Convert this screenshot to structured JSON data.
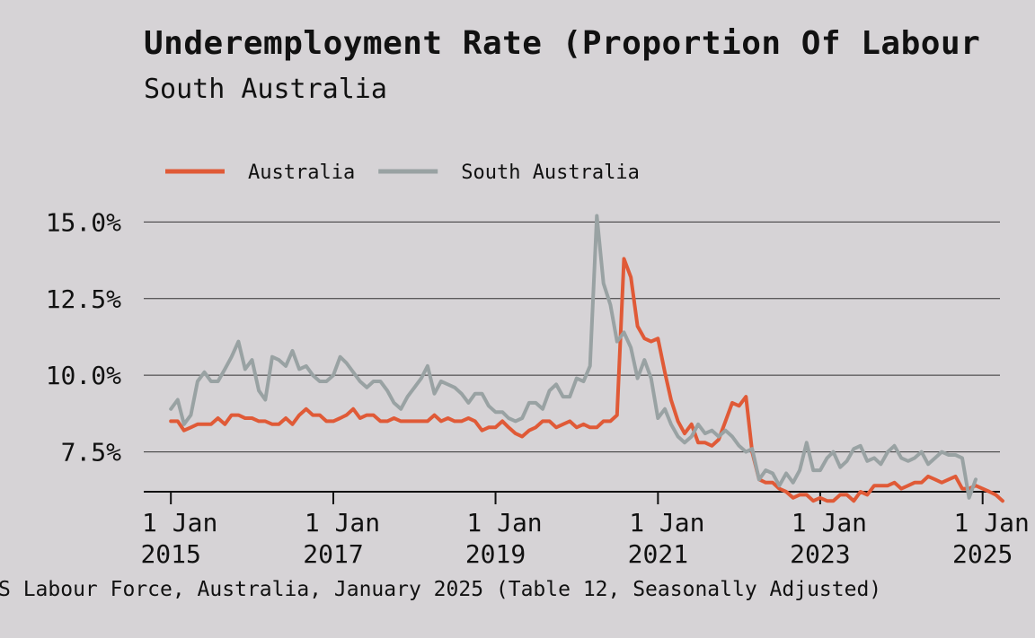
{
  "title": "Underemployment Rate (Proportion Of Labour",
  "subtitle": "South Australia",
  "source": "S Labour Force, Australia, January 2025 (Table 12, Seasonally Adjusted)",
  "chart_data": {
    "type": "line",
    "ylim": [
      6.2,
      15.45
    ],
    "xlim": [
      "2014-09-01",
      "2025-03-20"
    ],
    "y_ticks": [
      7.5,
      10.0,
      12.5,
      15.0
    ],
    "y_tick_labels": [
      "7.5%",
      "10.0%",
      "12.5%",
      "15.0%"
    ],
    "x_ticks": [
      "2015-01-01",
      "2017-01-01",
      "2019-01-01",
      "2021-01-01",
      "2023-01-01",
      "2025-01-01"
    ],
    "x_tick_labels": [
      [
        "1 Jan",
        "2015"
      ],
      [
        "1 Jan",
        "2017"
      ],
      [
        "1 Jan",
        "2019"
      ],
      [
        "1 Jan",
        "2021"
      ],
      [
        "1 Jan",
        "2023"
      ],
      [
        "1 Jan",
        "2025"
      ]
    ],
    "grid": "horizontal",
    "legend_position": "top-left",
    "start": "2015-01-01",
    "frequency": "monthly",
    "series": [
      {
        "name": "Australia",
        "color": "#e05a37",
        "values": [
          8.5,
          8.5,
          8.2,
          8.3,
          8.4,
          8.4,
          8.4,
          8.6,
          8.4,
          8.7,
          8.7,
          8.6,
          8.6,
          8.5,
          8.5,
          8.4,
          8.4,
          8.6,
          8.4,
          8.7,
          8.9,
          8.7,
          8.7,
          8.5,
          8.5,
          8.6,
          8.7,
          8.9,
          8.6,
          8.7,
          8.7,
          8.5,
          8.5,
          8.6,
          8.5,
          8.5,
          8.5,
          8.5,
          8.5,
          8.7,
          8.5,
          8.6,
          8.5,
          8.5,
          8.6,
          8.5,
          8.2,
          8.3,
          8.3,
          8.5,
          8.3,
          8.1,
          8.0,
          8.2,
          8.3,
          8.5,
          8.5,
          8.3,
          8.4,
          8.5,
          8.3,
          8.4,
          8.3,
          8.3,
          8.5,
          8.5,
          8.7,
          13.8,
          13.2,
          11.6,
          11.2,
          11.1,
          11.2,
          10.1,
          9.2,
          8.5,
          8.1,
          8.4,
          7.8,
          7.8,
          7.7,
          7.9,
          8.5,
          9.1,
          9.0,
          9.3,
          7.5,
          6.6,
          6.5,
          6.5,
          6.3,
          6.2,
          6.0,
          6.1,
          6.1,
          5.9,
          6.0,
          5.9,
          5.9,
          6.1,
          6.1,
          5.9,
          6.2,
          6.1,
          6.4,
          6.4,
          6.4,
          6.5,
          6.3,
          6.4,
          6.5,
          6.5,
          6.7,
          6.6,
          6.5,
          6.6,
          6.7,
          6.3,
          6.3,
          6.4,
          6.3,
          6.2,
          6.1,
          5.9
        ]
      },
      {
        "name": "South Australia",
        "color": "#99a2a3",
        "values": [
          8.9,
          9.2,
          8.4,
          8.7,
          9.8,
          10.1,
          9.8,
          9.8,
          10.2,
          10.6,
          11.1,
          10.2,
          10.5,
          9.5,
          9.2,
          10.6,
          10.5,
          10.3,
          10.8,
          10.2,
          10.3,
          10.0,
          9.8,
          9.8,
          10.0,
          10.6,
          10.4,
          10.1,
          9.8,
          9.6,
          9.8,
          9.8,
          9.5,
          9.1,
          8.9,
          9.3,
          9.6,
          9.9,
          10.3,
          9.4,
          9.8,
          9.7,
          9.6,
          9.4,
          9.1,
          9.4,
          9.4,
          9.0,
          8.8,
          8.8,
          8.6,
          8.5,
          8.6,
          9.1,
          9.1,
          8.9,
          9.5,
          9.7,
          9.3,
          9.3,
          9.9,
          9.8,
          10.3,
          15.2,
          13.0,
          12.3,
          11.1,
          11.4,
          10.9,
          9.9,
          10.5,
          9.9,
          8.6,
          8.9,
          8.4,
          8.0,
          7.8,
          8.0,
          8.4,
          8.1,
          8.2,
          8.0,
          8.2,
          8.0,
          7.7,
          7.5,
          7.6,
          6.6,
          6.9,
          6.8,
          6.4,
          6.8,
          6.5,
          6.9,
          7.8,
          6.9,
          6.9,
          7.3,
          7.5,
          7.0,
          7.2,
          7.6,
          7.7,
          7.2,
          7.3,
          7.1,
          7.5,
          7.7,
          7.3,
          7.2,
          7.3,
          7.5,
          7.1,
          7.3,
          7.5,
          7.4,
          7.4,
          7.3,
          6.0,
          6.6
        ]
      }
    ]
  }
}
